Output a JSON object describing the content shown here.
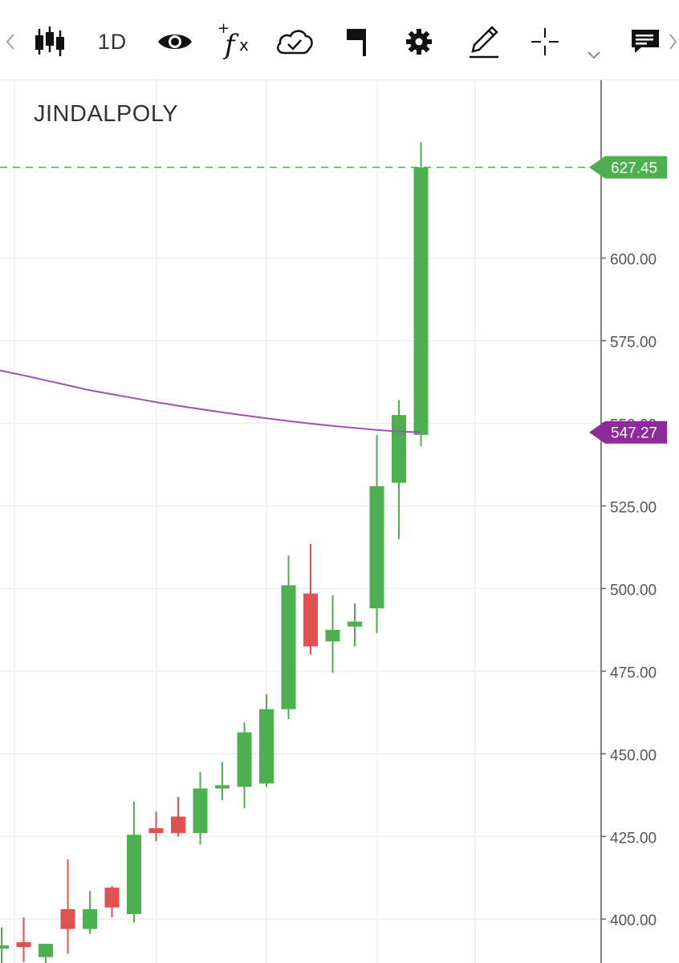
{
  "toolbar": {
    "scroll_left_icon": "chevron-left-icon",
    "chart_type_icon": "candlestick-icon",
    "interval_label": "1D",
    "visibility_icon": "eye-icon",
    "indicators_icon": "function-fx-icon",
    "cloud_icon": "cloud-check-icon",
    "flag_icon": "flag-icon",
    "settings_icon": "gear-icon",
    "draw_icon": "pencil-icon",
    "crosshair_icon": "crosshair-icon",
    "dropdown_icon": "chevron-down-icon",
    "notes_icon": "notes-icon",
    "scroll_right_icon": "chevron-right-icon"
  },
  "symbol": "JINDALPOLY",
  "chart_data": {
    "type": "candlestick",
    "y_ticks": [
      400,
      425,
      450,
      475,
      500,
      525,
      550,
      575,
      600
    ],
    "y_tick_labels": [
      "400.00",
      "425.00",
      "450.00",
      "475.00",
      "500.00",
      "525.00",
      "550.00",
      "575.00",
      "600.00"
    ],
    "ylim": [
      386.7,
      653.8
    ],
    "grid": true,
    "candles": [
      {
        "open": 392.0,
        "high": 397.5,
        "low": 386.7,
        "close": 392.0,
        "color": "green"
      },
      {
        "open": 393.0,
        "high": 400.5,
        "low": 387.0,
        "close": 391.5,
        "color": "red"
      },
      {
        "open": 388.5,
        "high": 392.5,
        "low": 386.7,
        "close": 392.5,
        "color": "green"
      },
      {
        "open": 403.0,
        "high": 418.0,
        "low": 389.5,
        "close": 397.0,
        "color": "red"
      },
      {
        "open": 397.0,
        "high": 408.5,
        "low": 395.5,
        "close": 403.0,
        "color": "green"
      },
      {
        "open": 409.5,
        "high": 410.0,
        "low": 400.5,
        "close": 403.5,
        "color": "red"
      },
      {
        "open": 401.5,
        "high": 435.5,
        "low": 399.0,
        "close": 425.5,
        "color": "green"
      },
      {
        "open": 427.5,
        "high": 432.5,
        "low": 423.5,
        "close": 426.0,
        "color": "red"
      },
      {
        "open": 431.0,
        "high": 437.0,
        "low": 425.0,
        "close": 426.0,
        "color": "red"
      },
      {
        "open": 426.0,
        "high": 444.5,
        "low": 422.5,
        "close": 439.5,
        "color": "green"
      },
      {
        "open": 439.5,
        "high": 447.5,
        "low": 436.0,
        "close": 440.5,
        "color": "green"
      },
      {
        "open": 440.0,
        "high": 459.5,
        "low": 433.5,
        "close": 456.5,
        "color": "green"
      },
      {
        "open": 441.0,
        "high": 468.0,
        "low": 440.0,
        "close": 463.5,
        "color": "green"
      },
      {
        "open": 463.5,
        "high": 510.0,
        "low": 460.5,
        "close": 501.0,
        "color": "green"
      },
      {
        "open": 498.5,
        "high": 513.5,
        "low": 480.0,
        "close": 482.5,
        "color": "red"
      },
      {
        "open": 484.0,
        "high": 498.0,
        "low": 474.5,
        "close": 487.5,
        "color": "green"
      },
      {
        "open": 488.5,
        "high": 495.5,
        "low": 482.5,
        "close": 490.0,
        "color": "green"
      },
      {
        "open": 494.0,
        "high": 546.5,
        "low": 486.5,
        "close": 531.0,
        "color": "green"
      },
      {
        "open": 532.0,
        "high": 557.0,
        "low": 515.0,
        "close": 552.5,
        "color": "green"
      },
      {
        "open": 546.5,
        "high": 635.0,
        "low": 543.0,
        "close": 627.45,
        "color": "green"
      }
    ],
    "moving_average": {
      "color": "#a24fb8",
      "values": [
        566.0,
        564.5,
        563.0,
        561.5,
        560.0,
        558.8,
        557.6,
        556.4,
        555.3,
        554.3,
        553.3,
        552.4,
        551.5,
        550.7,
        549.9,
        549.2,
        548.6,
        548.0,
        547.5,
        547.27
      ]
    },
    "last_price": 627.45,
    "last_price_label": "627.45",
    "last_price_color": "#4caf50",
    "ma_value_label": "547.27",
    "ma_label_color": "#8e2b9a",
    "up_color": "#4caf50",
    "down_color": "#e05252"
  }
}
